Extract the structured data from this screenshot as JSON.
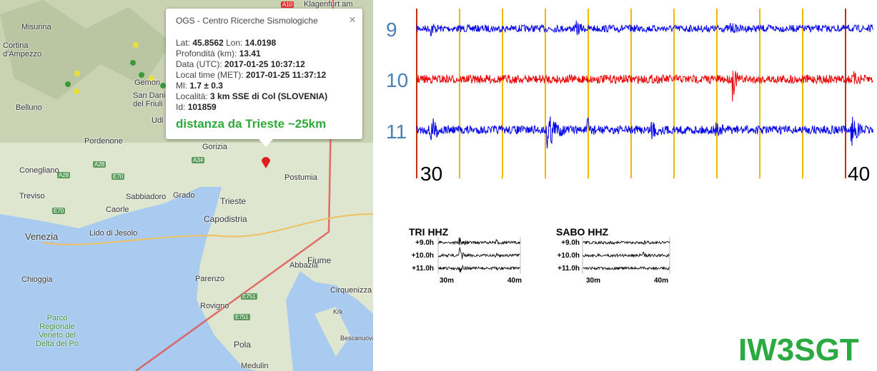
{
  "map": {
    "places": [
      "Klagenfurt am",
      "Misurina",
      "Cortina d'Ampezzo",
      "Belluno",
      "Gemon",
      "San Daniele del Friuli",
      "Udi",
      "Pordenone",
      "Conegliano",
      "Treviso",
      "Sabbiadoro",
      "Caorle",
      "Grado",
      "Gorizia",
      "Postumia",
      "Trieste",
      "Capodistria",
      "Lido di Jesolo",
      "Venezia",
      "Chioggia",
      "Abbazia",
      "Fiume",
      "Parenzo",
      "Cirquenizza",
      "Rovigno",
      "Krk",
      "Bescanuova",
      "Pola",
      "Medulin",
      "Parco Regionale Veneto del Delta del Po"
    ],
    "roads": [
      "A10",
      "A28",
      "A28",
      "E70",
      "E70",
      "A34",
      "E751",
      "E751"
    ]
  },
  "popup": {
    "title": "OGS - Centro Ricerche Sismologiche",
    "close": "×",
    "rows": [
      {
        "label": "Lat:",
        "value": "45.8562",
        "label2": "Lon:",
        "value2": "14.0198"
      },
      {
        "label": "Profondità (km):",
        "value": "13.41"
      },
      {
        "label": "Data (UTC):",
        "value": "2017-01-25 10:37:12"
      },
      {
        "label": "Local time (MET):",
        "value": "2017-01-25 11:37:12"
      },
      {
        "label": "Ml:",
        "value": "1.7 ± 0.3"
      },
      {
        "label": "Località:",
        "value": "3 km SSE di Col (SLOVENIA)"
      },
      {
        "label": "Id:",
        "value": "101859"
      }
    ],
    "distance": "distanza da Trieste ~25km"
  },
  "seismogram": {
    "rows": [
      "9",
      "10",
      "11"
    ],
    "times": [
      "30",
      "40"
    ]
  },
  "stations": [
    {
      "name": "TRI HHZ",
      "rows": [
        "+9.0h",
        "+10.0h",
        "+11.0h"
      ],
      "times": [
        "30m",
        "40m"
      ]
    },
    {
      "name": "SABO HHZ",
      "rows": [
        "+9.0h",
        "+10.0h",
        "+11.0h"
      ],
      "times": [
        "30m",
        "40m"
      ]
    }
  ],
  "footer": "IW3SGT"
}
